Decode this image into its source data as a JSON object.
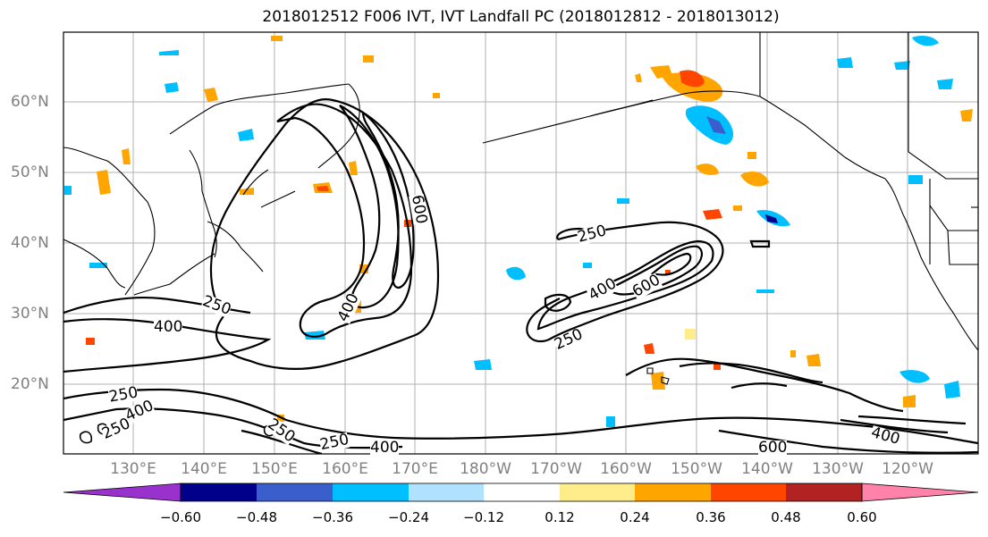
{
  "title": "2018012512 F006 IVT, IVT Landfall PC (2018012812 - 2018013012)",
  "lat_labels": [
    "60°N",
    "50°N",
    "40°N",
    "30°N",
    "20°N"
  ],
  "lon_labels": [
    "130°E",
    "140°E",
    "150°E",
    "160°E",
    "170°E",
    "180°W",
    "170°W",
    "160°W",
    "150°W",
    "140°W",
    "130°W",
    "120°W"
  ],
  "contour_labels": [
    "250",
    "400",
    "600",
    "250",
    "400",
    "600",
    "250",
    "250",
    "400",
    "250",
    "250",
    "400",
    "400",
    "600",
    "400",
    "250"
  ],
  "colorbar": {
    "ticks": [
      "−0.60",
      "−0.48",
      "−0.36",
      "−0.24",
      "−0.12",
      "0.12",
      "0.24",
      "0.36",
      "0.48",
      "0.60"
    ],
    "colors": [
      "#9932CC",
      "#00008B",
      "#3A5FCD",
      "#00BFFF",
      "#B0E2FF",
      "#FFFFFF",
      "#FFEC8B",
      "#FFA500",
      "#FF4500",
      "#B22222",
      "#FF82AB"
    ]
  }
}
